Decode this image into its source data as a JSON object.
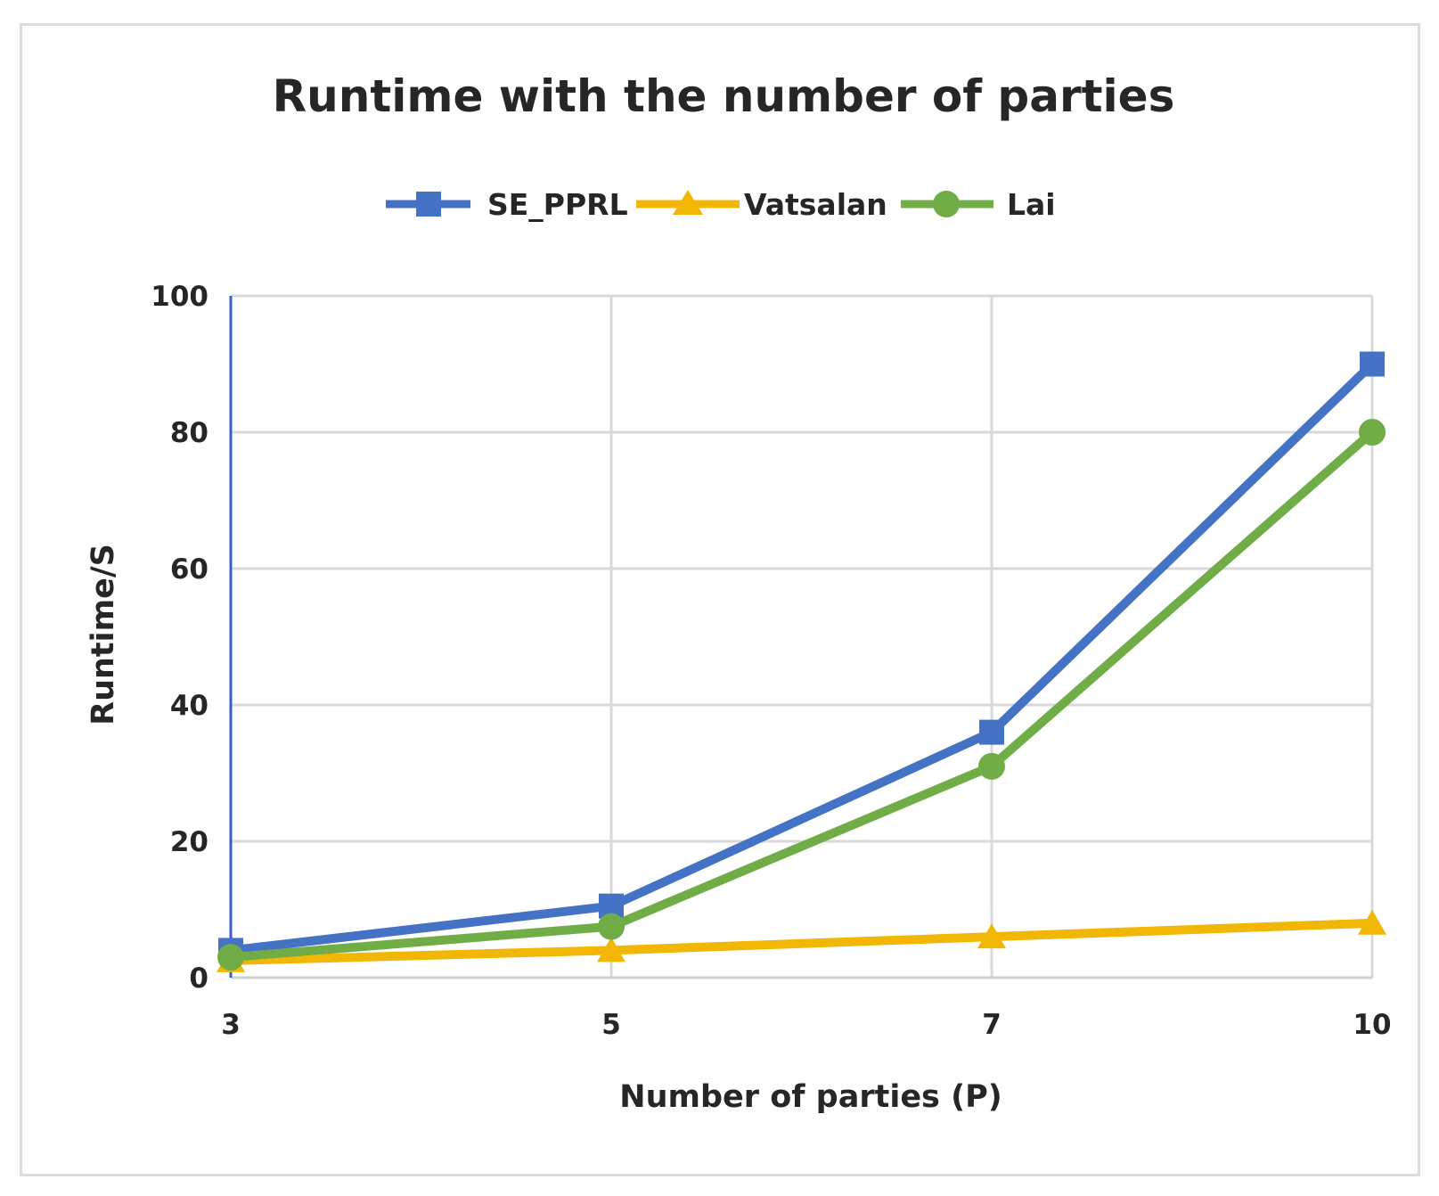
{
  "chart_data": {
    "type": "line",
    "title": "Runtime with the number of parties",
    "xlabel": "Number of parties (P)",
    "ylabel": "Runtime/S",
    "categories": [
      "3",
      "5",
      "7",
      "10"
    ],
    "ylim": [
      0,
      100
    ],
    "yticks": [
      "0",
      "20",
      "40",
      "60",
      "80",
      "100"
    ],
    "grid": true,
    "legend": "top",
    "series": [
      {
        "name": "SE_PPRL",
        "color": "#4472C4",
        "marker": "square",
        "values": [
          4,
          10.5,
          36,
          90
        ]
      },
      {
        "name": "Vatsalan",
        "color": "#F2B705",
        "marker": "triangle",
        "values": [
          2.5,
          4,
          6,
          8
        ]
      },
      {
        "name": "Lai",
        "color": "#70AD47",
        "marker": "circle",
        "values": [
          3,
          7.5,
          31,
          80
        ]
      }
    ]
  }
}
